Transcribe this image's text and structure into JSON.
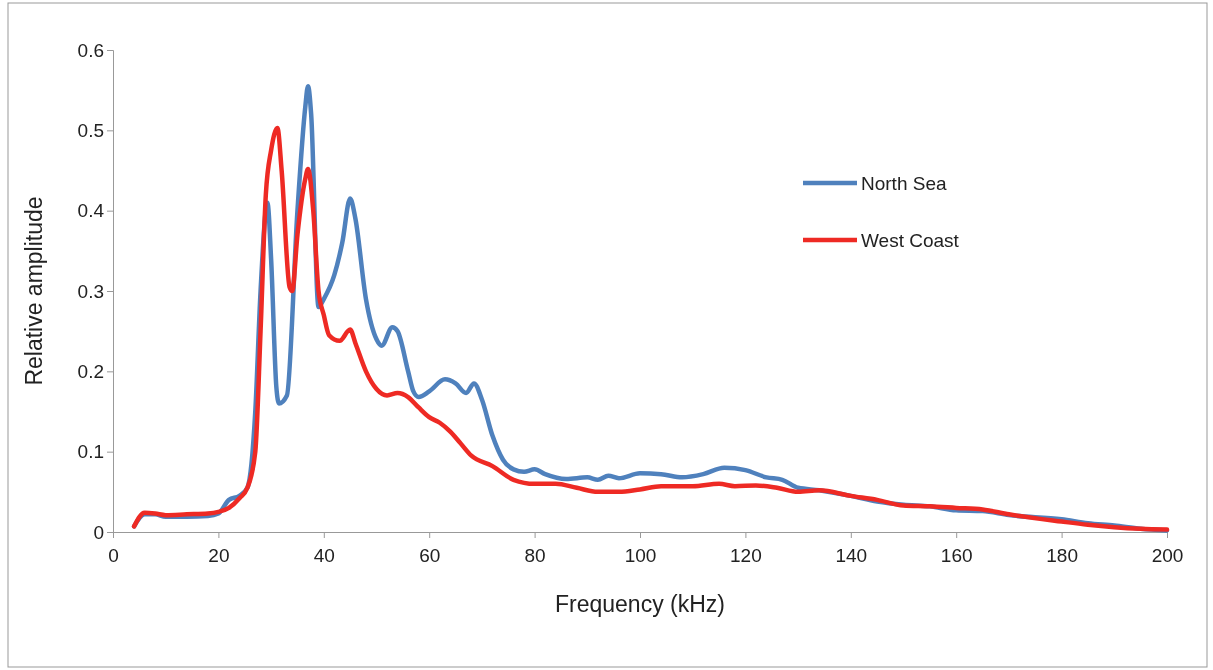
{
  "chart_data": {
    "type": "line",
    "xlabel": "Frequency (kHz)",
    "ylabel": "Relative amplitude",
    "xlim": [
      0,
      200
    ],
    "xticks": [
      0,
      20,
      40,
      60,
      80,
      100,
      120,
      140,
      160,
      180,
      200
    ],
    "ylim": [
      0,
      0.6
    ],
    "yticks": [
      0,
      0.1,
      0.2,
      0.3,
      0.4,
      0.5,
      0.6
    ],
    "grid": false,
    "legend": "top right",
    "marker": "none",
    "line_style": "solid",
    "series": [
      {
        "name": "North Sea",
        "color": "#4f81bd",
        "x": [
          4,
          6,
          8,
          10,
          14,
          18,
          20,
          22,
          24,
          25.5,
          27,
          28,
          29.3,
          30,
          31,
          31.5,
          33,
          35,
          36.5,
          37,
          37.6,
          39,
          40,
          42,
          43.5,
          45,
          46,
          48,
          50,
          51,
          53,
          54,
          56,
          57,
          58,
          60,
          63,
          65,
          67,
          68.5,
          70,
          72,
          74,
          76,
          78,
          80,
          82,
          86,
          90,
          92,
          94,
          96,
          100,
          104,
          108,
          112,
          116,
          120,
          124,
          127,
          130,
          134,
          140,
          145,
          150,
          155,
          160,
          165,
          170,
          180,
          185,
          190,
          195,
          200
        ],
        "values": [
          0.007,
          0.022,
          0.022,
          0.019,
          0.019,
          0.02,
          0.023,
          0.04,
          0.045,
          0.055,
          0.15,
          0.3,
          0.41,
          0.34,
          0.18,
          0.16,
          0.17,
          0.4,
          0.53,
          0.555,
          0.52,
          0.28,
          0.29,
          0.32,
          0.36,
          0.415,
          0.39,
          0.29,
          0.24,
          0.232,
          0.255,
          0.25,
          0.2,
          0.175,
          0.168,
          0.175,
          0.19,
          0.185,
          0.173,
          0.185,
          0.165,
          0.12,
          0.09,
          0.078,
          0.075,
          0.078,
          0.072,
          0.066,
          0.068,
          0.065,
          0.07,
          0.067,
          0.073,
          0.072,
          0.068,
          0.072,
          0.08,
          0.077,
          0.068,
          0.065,
          0.055,
          0.052,
          0.045,
          0.038,
          0.034,
          0.032,
          0.027,
          0.026,
          0.021,
          0.016,
          0.011,
          0.008,
          0.004,
          0.002
        ]
      },
      {
        "name": "West Coast",
        "color": "#ee2a24",
        "x": [
          4,
          6,
          8,
          10,
          14,
          18,
          20,
          22,
          24,
          25.5,
          27,
          28,
          29,
          30,
          31.2,
          32,
          33.5,
          34,
          35,
          36.5,
          37,
          38,
          39,
          40,
          41,
          43,
          45,
          46,
          48,
          50,
          52,
          54,
          56,
          58,
          60,
          62,
          64,
          66,
          68,
          72,
          76,
          80,
          84,
          88,
          92,
          96,
          100,
          104,
          110,
          115,
          118,
          122,
          126,
          130,
          134,
          140,
          145,
          150,
          155,
          160,
          165,
          170,
          180,
          185,
          190,
          195,
          200
        ],
        "values": [
          0.007,
          0.024,
          0.023,
          0.021,
          0.022,
          0.023,
          0.025,
          0.03,
          0.042,
          0.055,
          0.1,
          0.25,
          0.42,
          0.475,
          0.503,
          0.45,
          0.305,
          0.3,
          0.37,
          0.44,
          0.452,
          0.4,
          0.3,
          0.27,
          0.245,
          0.238,
          0.252,
          0.235,
          0.2,
          0.178,
          0.17,
          0.173,
          0.168,
          0.155,
          0.143,
          0.136,
          0.125,
          0.11,
          0.095,
          0.082,
          0.065,
          0.06,
          0.06,
          0.055,
          0.05,
          0.05,
          0.053,
          0.057,
          0.057,
          0.06,
          0.057,
          0.058,
          0.055,
          0.05,
          0.052,
          0.045,
          0.04,
          0.033,
          0.032,
          0.03,
          0.028,
          0.022,
          0.013,
          0.009,
          0.006,
          0.004,
          0.003
        ]
      }
    ]
  }
}
